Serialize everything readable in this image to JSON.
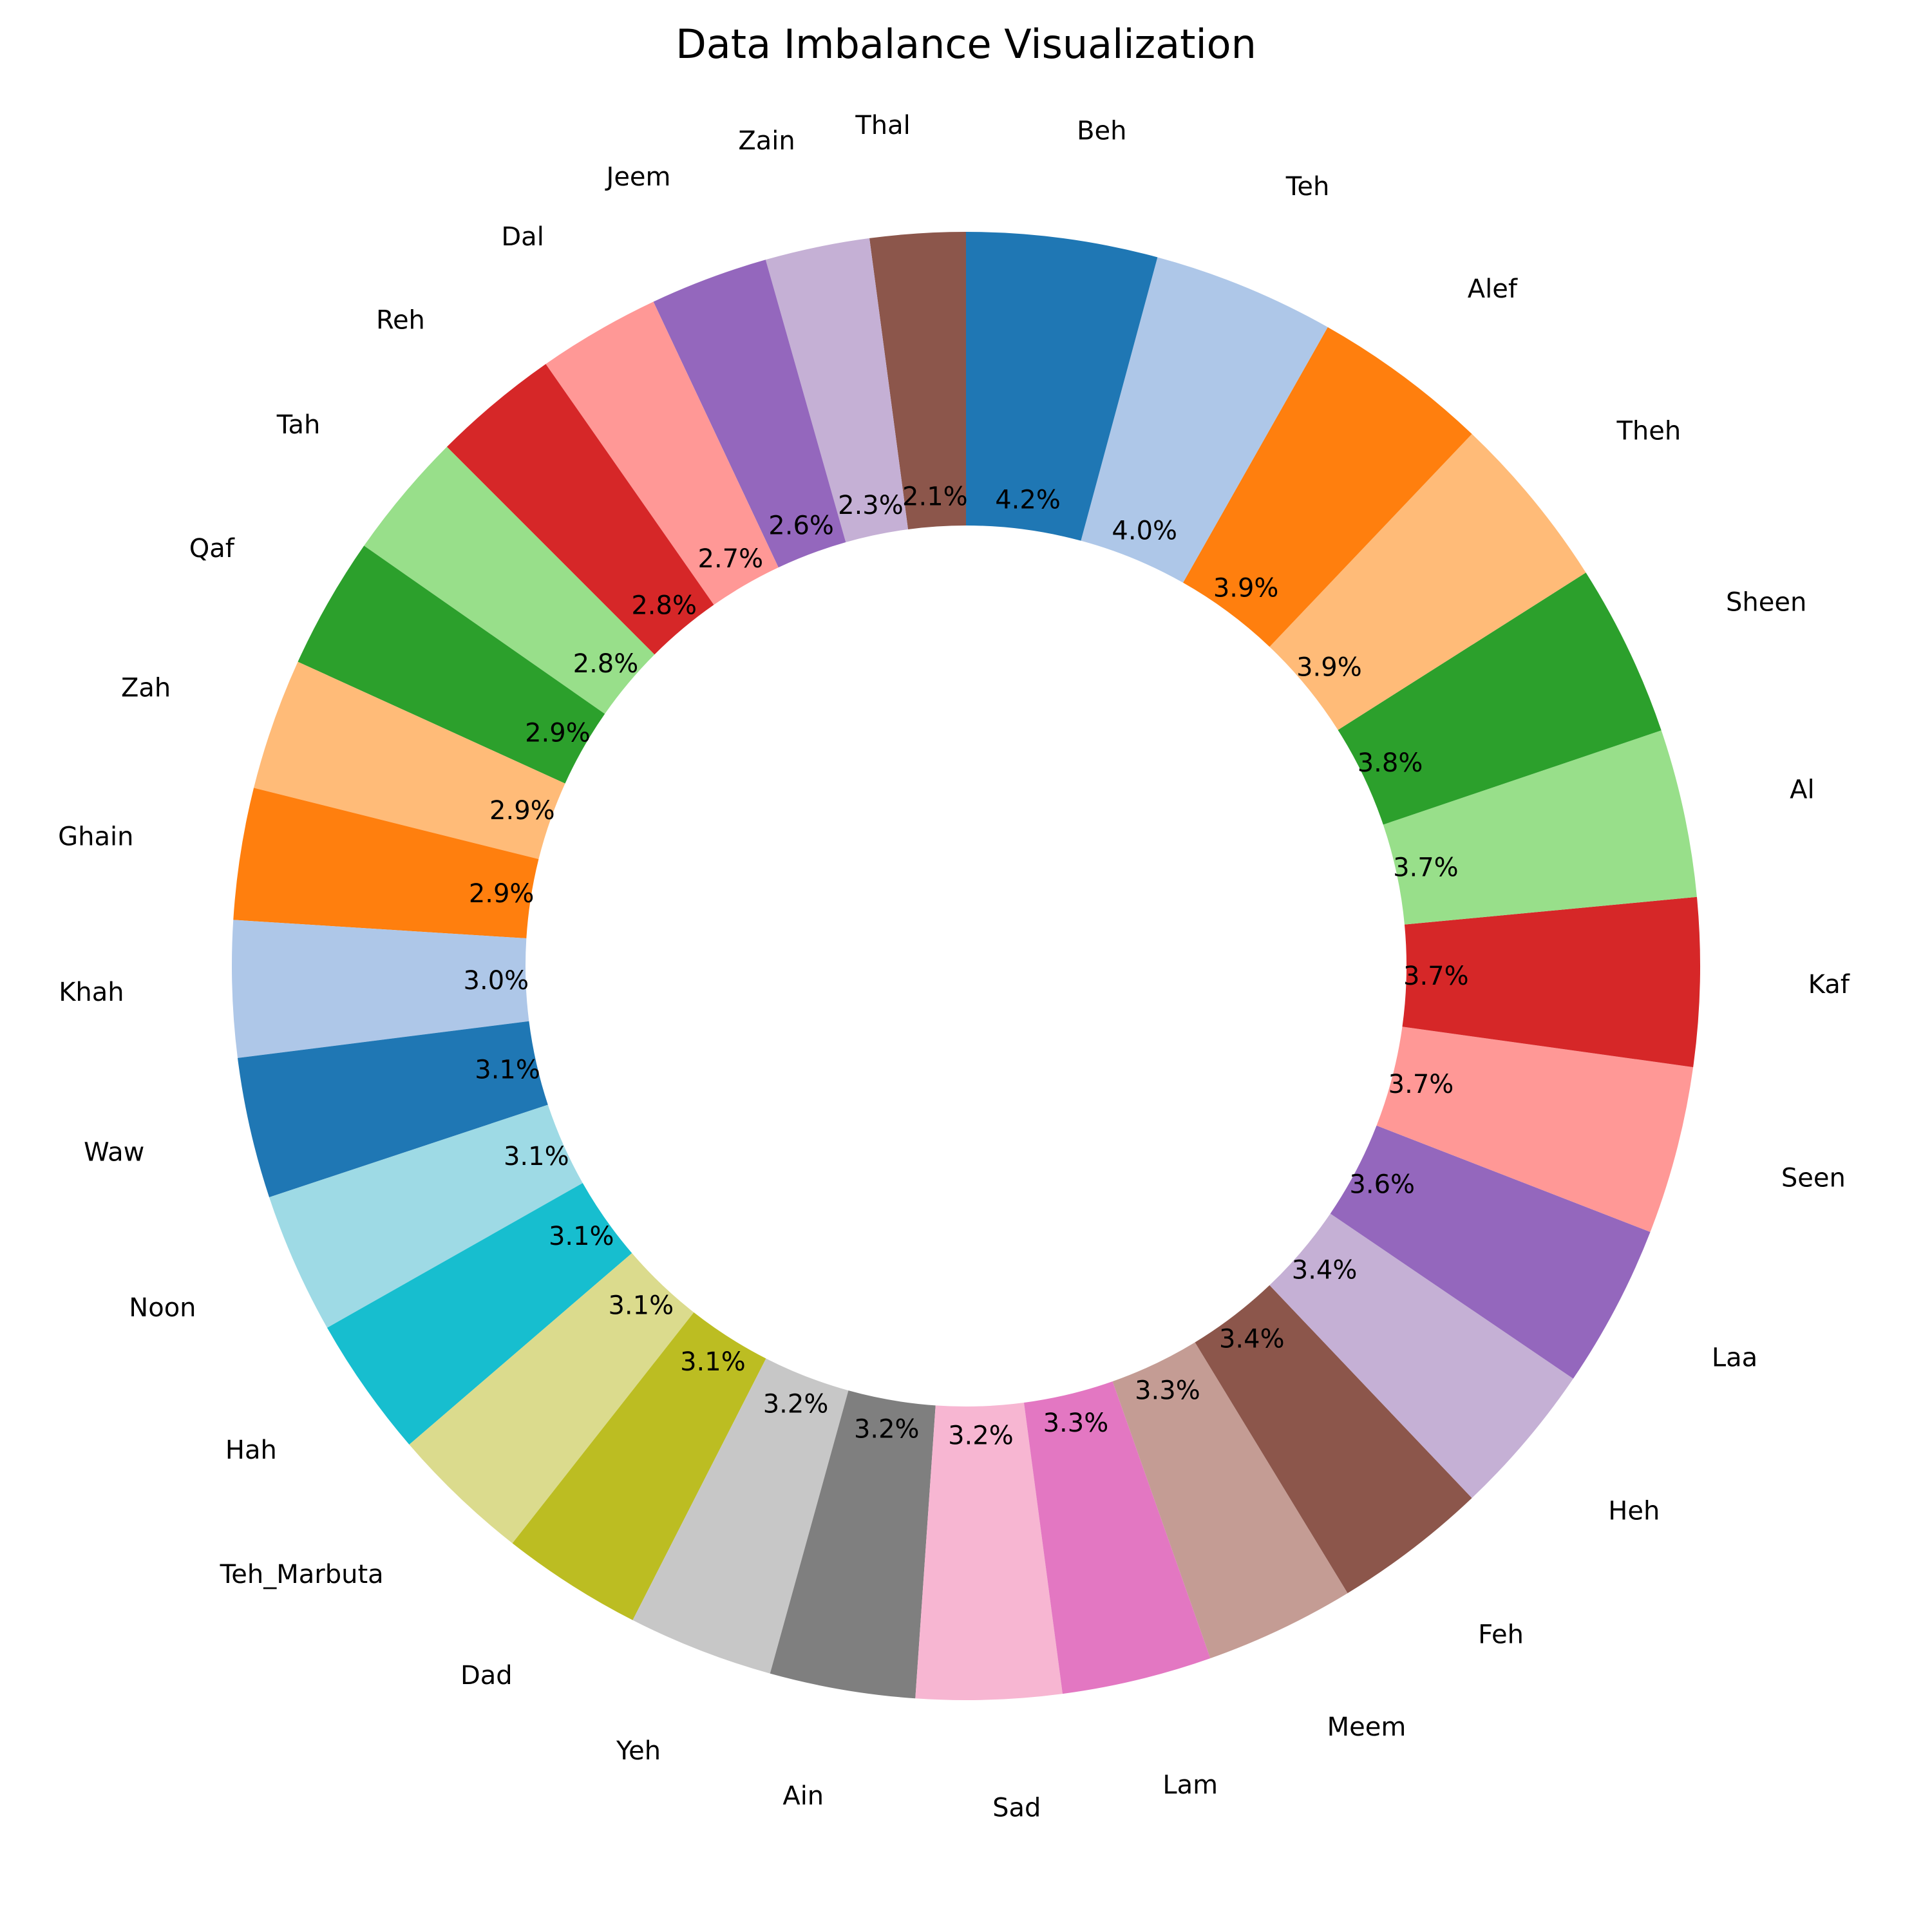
{
  "chart_data": {
    "type": "pie",
    "variant": "donut",
    "title": "Data Imbalance Visualization",
    "start_angle_deg": 90,
    "direction": "counterclockwise",
    "slices": [
      {
        "label": "Thal",
        "value": 2.1,
        "pct_text": "2.1%",
        "color": "#8c564b"
      },
      {
        "label": "Zain",
        "value": 2.3,
        "pct_text": "2.3%",
        "color": "#c5b0d5"
      },
      {
        "label": "Jeem",
        "value": 2.6,
        "pct_text": "2.6%",
        "color": "#9467bd"
      },
      {
        "label": "Dal",
        "value": 2.7,
        "pct_text": "2.7%",
        "color": "#ff9896"
      },
      {
        "label": "Reh",
        "value": 2.8,
        "pct_text": "2.8%",
        "color": "#d62728"
      },
      {
        "label": "Tah",
        "value": 2.8,
        "pct_text": "2.8%",
        "color": "#98df8a"
      },
      {
        "label": "Qaf",
        "value": 2.9,
        "pct_text": "2.9%",
        "color": "#2ca02c"
      },
      {
        "label": "Zah",
        "value": 2.9,
        "pct_text": "2.9%",
        "color": "#ffbb78"
      },
      {
        "label": "Ghain",
        "value": 2.9,
        "pct_text": "2.9%",
        "color": "#ff7f0e"
      },
      {
        "label": "Khah",
        "value": 3.0,
        "pct_text": "3.0%",
        "color": "#aec7e8"
      },
      {
        "label": "Waw",
        "value": 3.1,
        "pct_text": "3.1%",
        "color": "#1f77b4"
      },
      {
        "label": "Noon",
        "value": 3.1,
        "pct_text": "3.1%",
        "color": "#9edae5"
      },
      {
        "label": "Hah",
        "value": 3.1,
        "pct_text": "3.1%",
        "color": "#17becf"
      },
      {
        "label": "Teh_Marbuta",
        "value": 3.1,
        "pct_text": "3.1%",
        "color": "#dbdb8d"
      },
      {
        "label": "Dad",
        "value": 3.1,
        "pct_text": "3.1%",
        "color": "#bcbd22"
      },
      {
        "label": "Yeh",
        "value": 3.2,
        "pct_text": "3.2%",
        "color": "#c7c7c7"
      },
      {
        "label": "Ain",
        "value": 3.2,
        "pct_text": "3.2%",
        "color": "#7f7f7f"
      },
      {
        "label": "Sad",
        "value": 3.2,
        "pct_text": "3.2%",
        "color": "#f7b6d2"
      },
      {
        "label": "Lam",
        "value": 3.3,
        "pct_text": "3.3%",
        "color": "#e377c2"
      },
      {
        "label": "Meem",
        "value": 3.3,
        "pct_text": "3.3%",
        "color": "#c49c94"
      },
      {
        "label": "Feh",
        "value": 3.4,
        "pct_text": "3.4%",
        "color": "#8c564b"
      },
      {
        "label": "Heh",
        "value": 3.4,
        "pct_text": "3.4%",
        "color": "#c5b0d5"
      },
      {
        "label": "Laa",
        "value": 3.6,
        "pct_text": "3.6%",
        "color": "#9467bd"
      },
      {
        "label": "Seen",
        "value": 3.7,
        "pct_text": "3.7%",
        "color": "#ff9896"
      },
      {
        "label": "Kaf",
        "value": 3.7,
        "pct_text": "3.7%",
        "color": "#d62728"
      },
      {
        "label": "Al",
        "value": 3.7,
        "pct_text": "3.7%",
        "color": "#98df8a"
      },
      {
        "label": "Sheen",
        "value": 3.8,
        "pct_text": "3.8%",
        "color": "#2ca02c"
      },
      {
        "label": "Theh",
        "value": 3.9,
        "pct_text": "3.9%",
        "color": "#ffbb78"
      },
      {
        "label": "Alef",
        "value": 3.9,
        "pct_text": "3.9%",
        "color": "#ff7f0e"
      },
      {
        "label": "Teh",
        "value": 4.0,
        "pct_text": "4.0%",
        "color": "#aec7e8"
      },
      {
        "label": "Beh",
        "value": 4.2,
        "pct_text": "4.2%",
        "color": "#1f77b4"
      }
    ]
  }
}
